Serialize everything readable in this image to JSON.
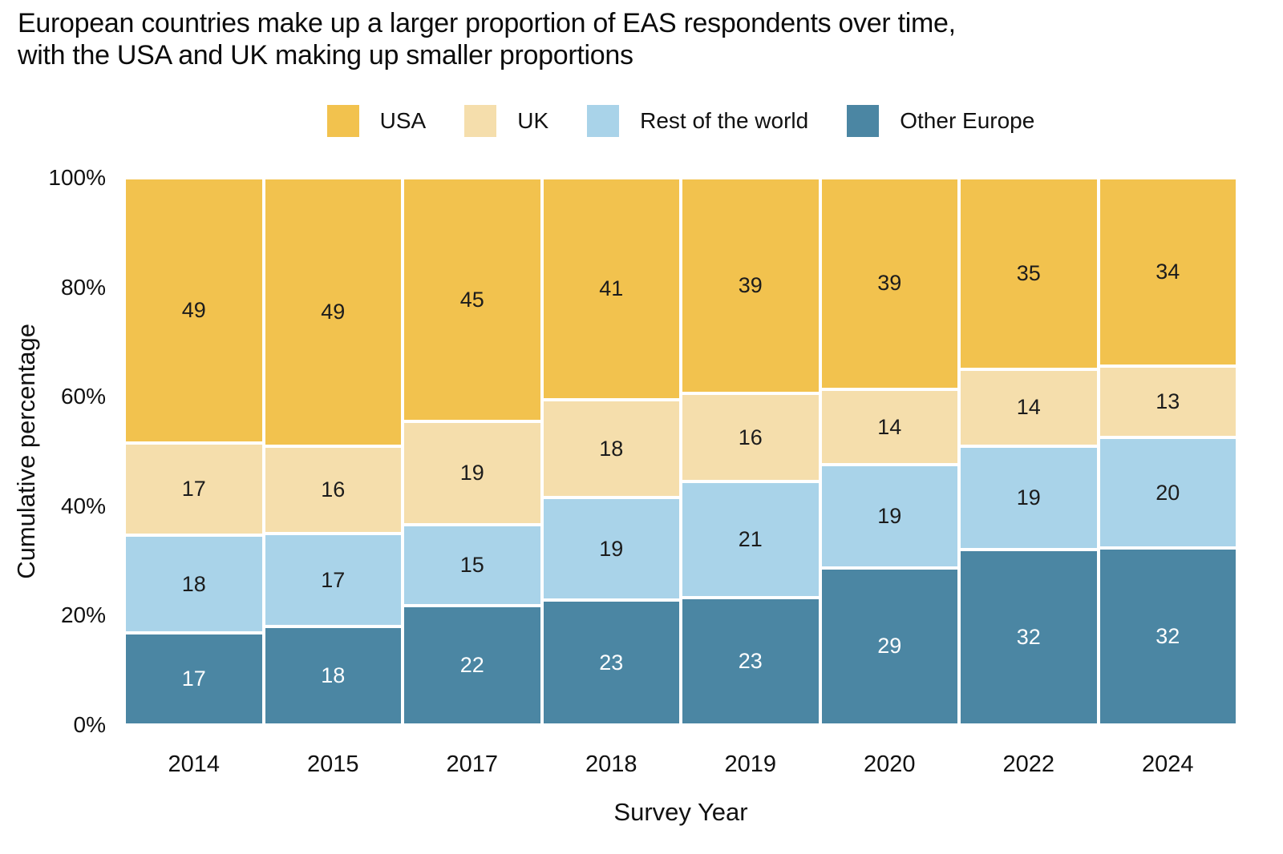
{
  "title": {
    "line1": "European countries make up a larger proportion of EAS respondents over time,",
    "line2": "with the USA and UK making up smaller proportions"
  },
  "chart_data": {
    "type": "bar",
    "stacked": true,
    "percent_scale": true,
    "title": "European countries make up a larger proportion of EAS respondents over time, with the USA and UK making up smaller proportions",
    "xlabel": "Survey Year",
    "ylabel": "Cumulative percentage",
    "ylim": [
      0,
      100
    ],
    "ytick_labels": [
      "0%",
      "20%",
      "40%",
      "60%",
      "80%",
      "100%"
    ],
    "ytick_values": [
      0,
      20,
      40,
      60,
      80,
      100
    ],
    "grid": false,
    "legend_position": "top-center",
    "legend_order": [
      "USA",
      "UK",
      "Rest of the world",
      "Other Europe"
    ],
    "categories": [
      "2014",
      "2015",
      "2017",
      "2018",
      "2019",
      "2020",
      "2022",
      "2024"
    ],
    "series": [
      {
        "name": "Other Europe",
        "stack_position": "bottom",
        "color": "#4B86A3",
        "label_color": "#FFFFFF",
        "values": [
          17,
          18,
          22,
          23,
          23,
          29,
          32,
          32
        ]
      },
      {
        "name": "Rest of the world",
        "stack_position": "lower-middle",
        "color": "#A9D3E9",
        "label_color": "#1C1C1C",
        "values": [
          18,
          17,
          15,
          19,
          21,
          19,
          19,
          20
        ]
      },
      {
        "name": "UK",
        "stack_position": "upper-middle",
        "color": "#F5DEAC",
        "label_color": "#1C1C1C",
        "values": [
          17,
          16,
          19,
          18,
          16,
          14,
          14,
          13
        ]
      },
      {
        "name": "USA",
        "stack_position": "top",
        "color": "#F2C24E",
        "label_color": "#1C1C1C",
        "values": [
          49,
          49,
          45,
          41,
          39,
          39,
          35,
          34
        ]
      }
    ]
  }
}
